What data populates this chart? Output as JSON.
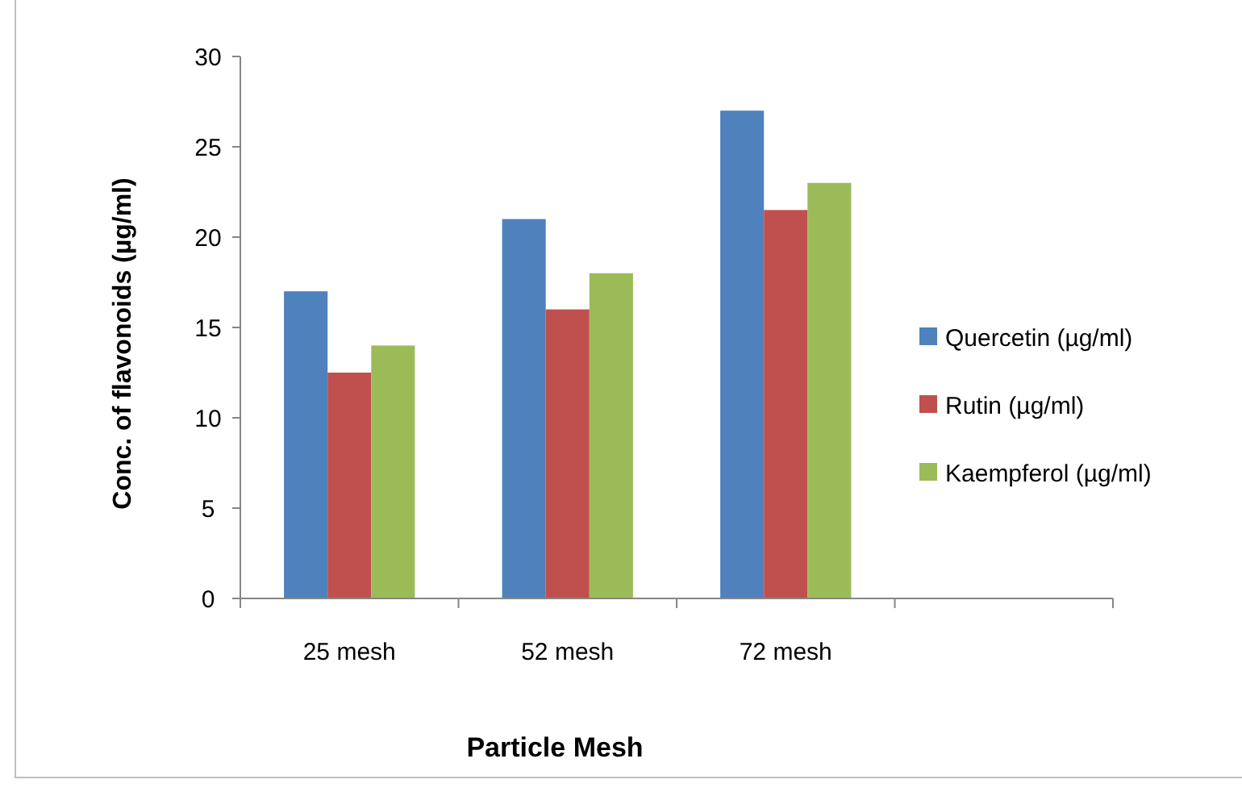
{
  "chart_data": {
    "type": "bar",
    "xlabel": "Particle Mesh",
    "ylabel": "Conc. of flavonoids (µg/ml)",
    "categories": [
      "25 mesh",
      "52 mesh",
      "72 mesh",
      null
    ],
    "series": [
      {
        "name": "Quercetin (µg/ml)",
        "color": "#4f81bd",
        "values": [
          17,
          21,
          27,
          null
        ]
      },
      {
        "name": "Rutin (µg/ml)",
        "color": "#c0504d",
        "values": [
          12.5,
          16,
          21.5,
          null
        ]
      },
      {
        "name": "Kaempferol (µg/ml)",
        "color": "#9bbb59",
        "values": [
          14,
          18,
          23,
          null
        ]
      }
    ],
    "ylim": [
      0,
      30
    ],
    "yticks": [
      0,
      5,
      10,
      15,
      20,
      25,
      30
    ],
    "grid": false,
    "legend": "right"
  }
}
